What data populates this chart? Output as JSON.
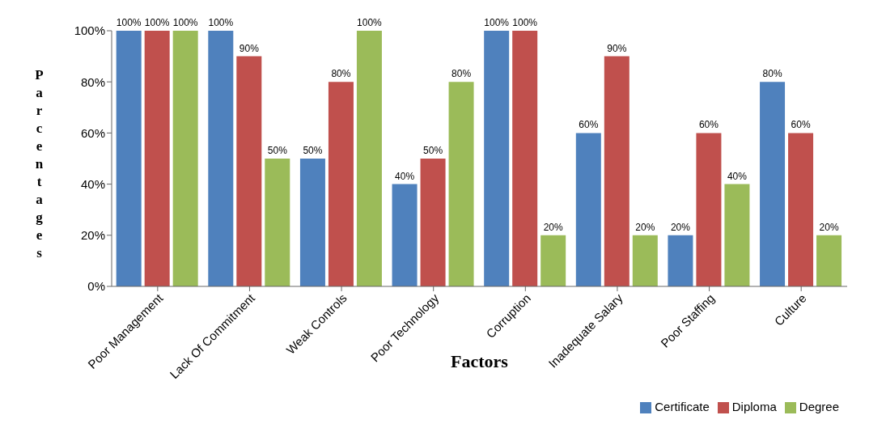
{
  "chart_data": {
    "type": "bar",
    "xlabel": "Factors",
    "ylabel": "Parcentages",
    "categories": [
      "Poor Management",
      "Lack Of Commitment",
      "Weak Controls",
      "Poor Technology",
      "Corruption",
      "Inadequate Salary",
      "Poor Staffing",
      "Culture"
    ],
    "series": [
      {
        "name": "Certificate",
        "color": "#4f81bd",
        "values": [
          100,
          100,
          50,
          40,
          100,
          60,
          20,
          80
        ],
        "value_labels": [
          "100%",
          "100%",
          "50%",
          "40%",
          "100%",
          "60%",
          "20%",
          "80%"
        ]
      },
      {
        "name": "Diploma",
        "color": "#c0504d",
        "values": [
          100,
          90,
          80,
          50,
          100,
          90,
          60,
          60
        ],
        "value_labels": [
          "100%",
          "90%",
          "80%",
          "50%",
          "100%",
          "90%",
          "60%",
          "60%"
        ]
      },
      {
        "name": "Degree",
        "color": "#9bbb59",
        "values": [
          100,
          50,
          100,
          80,
          20,
          20,
          40,
          20
        ],
        "value_labels": [
          "100%",
          "50%",
          "100%",
          "80%",
          "20%",
          "20%",
          "40%",
          "20%"
        ]
      }
    ],
    "ylim": [
      0,
      100
    ],
    "yticks": [
      {
        "value": 0,
        "label": "0%"
      },
      {
        "value": 20,
        "label": "20%"
      },
      {
        "value": 40,
        "label": "40%"
      },
      {
        "value": 60,
        "label": "60%"
      },
      {
        "value": 80,
        "label": "80%"
      },
      {
        "value": 100,
        "label": "100%"
      }
    ],
    "grid": false,
    "legend": "bottom right"
  }
}
